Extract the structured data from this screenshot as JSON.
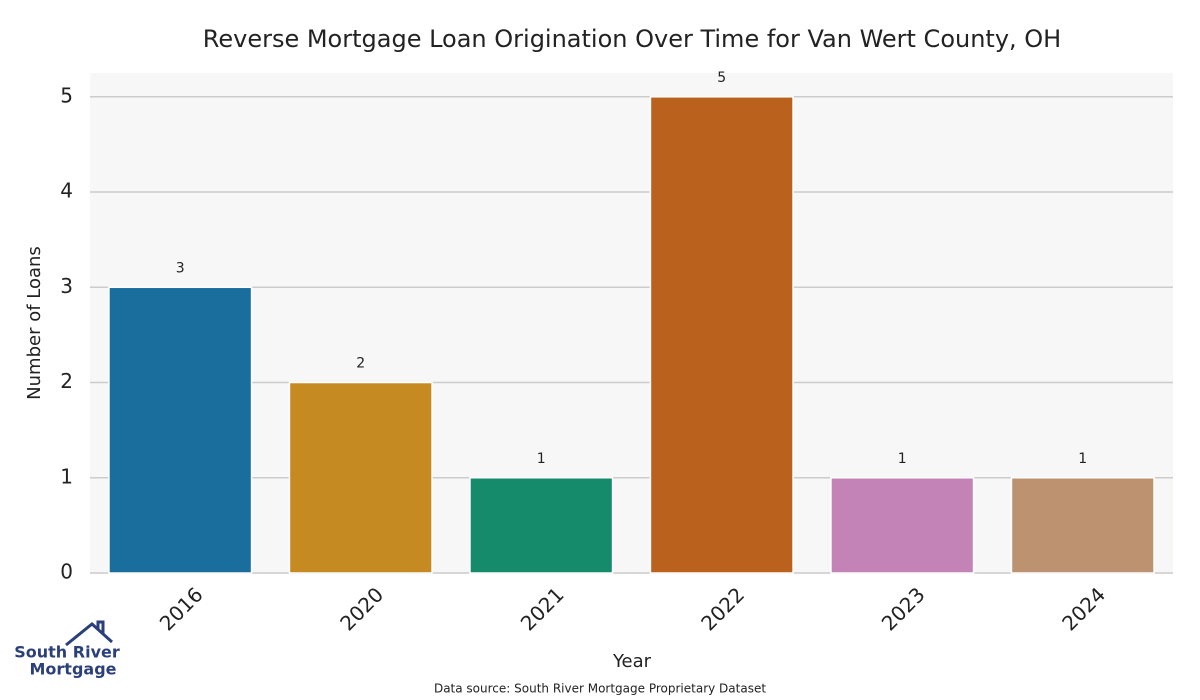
{
  "chart_data": {
    "type": "bar",
    "title": "Reverse Mortgage Loan Origination Over Time for Van Wert County, OH",
    "categories": [
      "2016",
      "2020",
      "2021",
      "2022",
      "2023",
      "2024"
    ],
    "values": [
      3,
      2,
      1,
      5,
      1,
      1
    ],
    "colors": [
      "#1a6e9e",
      "#c68a22",
      "#168b6b",
      "#b9611d",
      "#c383b6",
      "#bc9270"
    ],
    "ylim": [
      0,
      5.25
    ],
    "yticks": [
      0,
      1,
      2,
      3,
      4,
      5
    ],
    "grid": true,
    "xlabel": "Year",
    "ylabel": "Number of Loans",
    "source": "Data source: South River Mortgage Proprietary Dataset"
  },
  "logo": {
    "line1": "South River",
    "line2": "Mortgage"
  }
}
